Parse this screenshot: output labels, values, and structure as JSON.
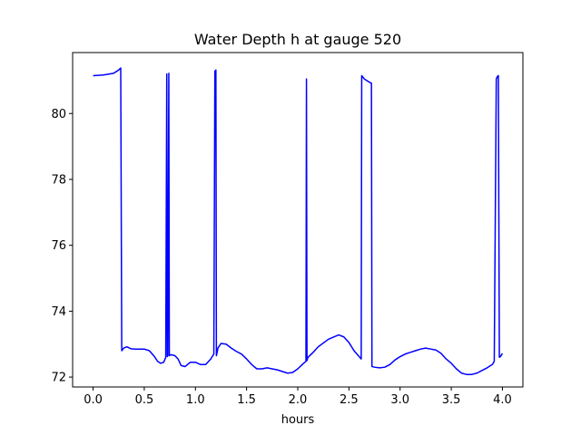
{
  "chart_data": {
    "type": "line",
    "title": "Water Depth h at gauge 520",
    "xlabel": "hours",
    "ylabel": "",
    "xlim": [
      -0.2,
      4.2
    ],
    "ylim": [
      71.7,
      81.85
    ],
    "xticks": [
      0.0,
      0.5,
      1.0,
      1.5,
      2.0,
      2.5,
      3.0,
      3.5,
      4.0
    ],
    "xtick_labels": [
      "0.0",
      "0.5",
      "1.0",
      "1.5",
      "2.0",
      "2.5",
      "3.0",
      "3.5",
      "4.0"
    ],
    "yticks": [
      72,
      74,
      76,
      78,
      80
    ],
    "ytick_labels": [
      "72",
      "74",
      "76",
      "78",
      "80"
    ],
    "grid": false,
    "series": [
      {
        "color": "#0000ff",
        "x": [
          0.0,
          0.1,
          0.2,
          0.25,
          0.27,
          0.28,
          0.3,
          0.33,
          0.37,
          0.42,
          0.5,
          0.55,
          0.6,
          0.63,
          0.66,
          0.69,
          0.71,
          0.72,
          0.725,
          0.73,
          0.74,
          0.745,
          0.76,
          0.8,
          0.83,
          0.86,
          0.9,
          0.95,
          1.0,
          1.05,
          1.1,
          1.15,
          1.18,
          1.19,
          1.2,
          1.205,
          1.21,
          1.22,
          1.25,
          1.3,
          1.35,
          1.4,
          1.45,
          1.5,
          1.55,
          1.6,
          1.65,
          1.7,
          1.8,
          1.9,
          1.95,
          2.0,
          2.05,
          2.08,
          2.085,
          2.09,
          2.1,
          2.15,
          2.2,
          2.3,
          2.4,
          2.45,
          2.5,
          2.55,
          2.6,
          2.62,
          2.625,
          2.65,
          2.7,
          2.72,
          2.725,
          2.75,
          2.8,
          2.85,
          2.9,
          2.95,
          3.0,
          3.05,
          3.1,
          3.15,
          3.2,
          3.25,
          3.3,
          3.35,
          3.4,
          3.45,
          3.5,
          3.55,
          3.6,
          3.65,
          3.7,
          3.75,
          3.8,
          3.85,
          3.9,
          3.91,
          3.92,
          3.94,
          3.95,
          3.96,
          3.97,
          3.98,
          4.0
        ],
        "y": [
          81.15,
          81.17,
          81.22,
          81.32,
          81.38,
          72.8,
          72.88,
          72.92,
          72.86,
          72.85,
          72.85,
          72.8,
          72.62,
          72.48,
          72.42,
          72.45,
          72.6,
          81.2,
          72.62,
          72.65,
          81.22,
          72.65,
          72.68,
          72.65,
          72.55,
          72.35,
          72.32,
          72.45,
          72.45,
          72.38,
          72.38,
          72.55,
          72.7,
          81.28,
          81.32,
          72.65,
          72.72,
          72.88,
          73.02,
          73.0,
          72.88,
          72.78,
          72.7,
          72.55,
          72.38,
          72.25,
          72.25,
          72.28,
          72.22,
          72.12,
          72.14,
          72.25,
          72.4,
          72.48,
          81.05,
          72.5,
          72.6,
          72.75,
          72.92,
          73.15,
          73.28,
          73.22,
          73.05,
          72.8,
          72.62,
          72.55,
          81.15,
          81.05,
          80.95,
          80.92,
          72.32,
          72.3,
          72.28,
          72.3,
          72.38,
          72.52,
          72.62,
          72.7,
          72.75,
          72.8,
          72.85,
          72.88,
          72.85,
          72.82,
          72.72,
          72.55,
          72.42,
          72.25,
          72.12,
          72.08,
          72.08,
          72.12,
          72.2,
          72.28,
          72.38,
          72.42,
          72.48,
          81.05,
          81.12,
          81.15,
          72.6,
          72.62,
          72.72
        ]
      }
    ]
  }
}
